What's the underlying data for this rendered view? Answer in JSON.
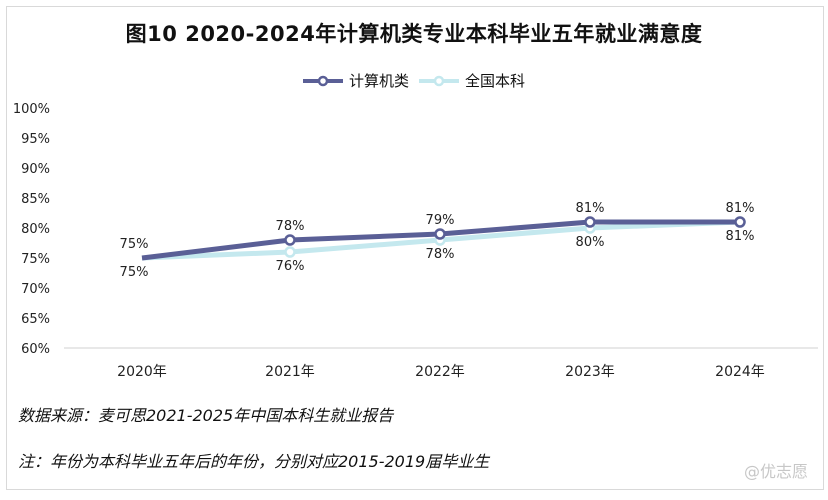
{
  "title": "图10 2020-2024年计算机类专业本科毕业五年就业满意度",
  "legend": [
    {
      "label": "计算机类",
      "color": "#5a5f96"
    },
    {
      "label": "全国本科",
      "color": "#c4e8ee"
    }
  ],
  "notes": {
    "source": "数据来源：麦可思2021-2025年中国本科生就业报告",
    "note": "注：年份为本科毕业五年后的年份，分别对应2015-2019届毕业生"
  },
  "watermark": "@优志愿",
  "chart_data": {
    "type": "line",
    "title": "图10 2020-2024年计算机类专业本科毕业五年就业满意度",
    "categories": [
      "2020年",
      "2021年",
      "2022年",
      "2023年",
      "2024年"
    ],
    "series": [
      {
        "name": "计算机类",
        "values": [
          75,
          78,
          79,
          81,
          81
        ],
        "labels": [
          "75%",
          "78%",
          "79%",
          "81%",
          "81%"
        ],
        "color": "#5a5f96"
      },
      {
        "name": "全国本科",
        "values": [
          75,
          76,
          78,
          80,
          81
        ],
        "labels": [
          "75%",
          "76%",
          "78%",
          "80%",
          "81%"
        ],
        "color": "#c4e8ee"
      }
    ],
    "yticks": [
      "60%",
      "65%",
      "70%",
      "75%",
      "80%",
      "85%",
      "90%",
      "95%",
      "100%"
    ],
    "ylim": [
      60,
      100
    ],
    "xlabel": "",
    "ylabel": "",
    "grid": false,
    "legend_position": "top"
  }
}
